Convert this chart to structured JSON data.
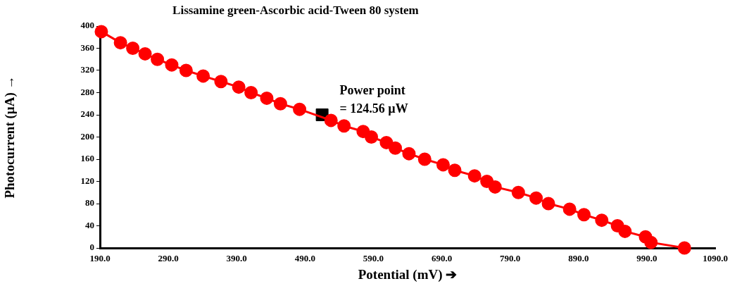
{
  "chart_data": {
    "type": "line",
    "title": "Lissamine green-Ascorbic acid-Tween 80 system",
    "xlabel": "Potential (mV) ➔",
    "ylabel": "Photocurrent (µA) →",
    "xlim": [
      190,
      1090
    ],
    "xticks": [
      {
        "value": 190,
        "label": "190.0"
      },
      {
        "value": 290,
        "label": "290.0"
      },
      {
        "value": 390,
        "label": "390.0"
      },
      {
        "value": 490,
        "label": "490.0"
      },
      {
        "value": 590,
        "label": "590.0"
      },
      {
        "value": 690,
        "label": "690.0"
      },
      {
        "value": 790,
        "label": "790.0"
      },
      {
        "value": 890,
        "label": "890.0"
      },
      {
        "value": 990,
        "label": "990.0"
      },
      {
        "value": 1090,
        "label": "1090.0"
      }
    ],
    "ylim": [
      0,
      400
    ],
    "yticks": [
      0,
      40,
      80,
      120,
      160,
      200,
      240,
      280,
      320,
      360,
      400
    ],
    "grid": false,
    "legend": false,
    "marker": "circle",
    "line_style": "solid",
    "series": [
      {
        "color": "#ff0000",
        "x": [
          192,
          220,
          238,
          256,
          274,
          295,
          316,
          341,
          367,
          393,
          411,
          434,
          454,
          482,
          528,
          547,
          575,
          587,
          609,
          622,
          642,
          665,
          692,
          709,
          738,
          756,
          768,
          802,
          828,
          846,
          877,
          898,
          924,
          947,
          958,
          988,
          996,
          1045
        ],
        "values": [
          390,
          370,
          360,
          350,
          340,
          330,
          320,
          310,
          300,
          290,
          280,
          270,
          260,
          250,
          230,
          220,
          210,
          200,
          190,
          180,
          170,
          160,
          150,
          140,
          130,
          120,
          110,
          100,
          90,
          80,
          70,
          60,
          50,
          40,
          30,
          20,
          10,
          0
        ]
      },
      {
        "type": "scatter",
        "color": "#000000",
        "marker": "square",
        "x": [
          515
        ],
        "values": [
          240
        ]
      }
    ],
    "annotations": [
      {
        "text": "Power point\n= 124.56 µW",
        "x": 515,
        "y": 240
      }
    ]
  }
}
